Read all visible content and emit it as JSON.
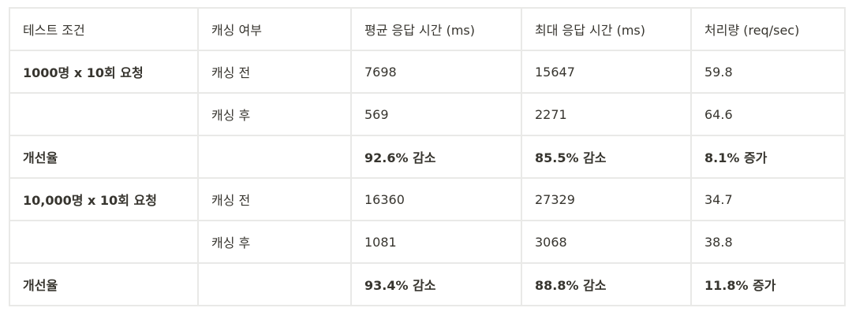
{
  "table": {
    "headers": [
      "테스트 조건",
      "캐싱 여부",
      "평균 응답 시간 (ms)",
      "최대 응답 시간 (ms)",
      "처리량 (req/sec)"
    ],
    "rows": [
      [
        "1000명 x 10회 요청",
        "캐싱 전",
        "7698",
        "15647",
        "59.8"
      ],
      [
        "",
        "캐싱 후",
        "569",
        "2271",
        "64.6"
      ],
      [
        "개선율",
        "",
        "92.6% 감소",
        "85.5% 감소",
        "8.1% 증가"
      ],
      [
        "10,000명 x 10회 요청",
        "캐싱 전",
        "16360",
        "27329",
        "34.7"
      ],
      [
        "",
        "캐싱 후",
        "1081",
        "3068",
        "38.8"
      ],
      [
        "개선율",
        "",
        "93.4% 감소",
        "88.8% 감소",
        "11.8% 증가"
      ]
    ]
  }
}
